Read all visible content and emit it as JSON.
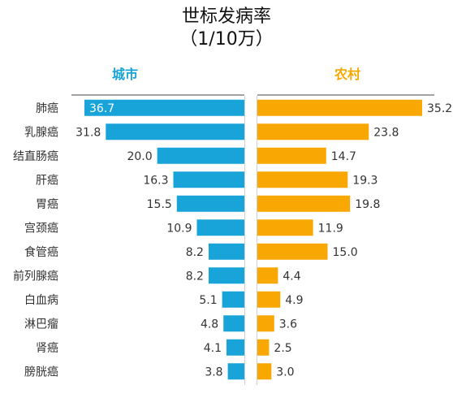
{
  "title_line1": "世标发病率",
  "title_line2": "（1/10万）",
  "city_label": "城市",
  "rural_label": "农村",
  "colors": {
    "city": "#18a4d9",
    "rural": "#f8a703"
  },
  "chart_data": {
    "type": "bar",
    "title": "世标发病率（1/10万）",
    "categories": [
      "肺癌",
      "乳腺癌",
      "结直肠癌",
      "肝癌",
      "胃癌",
      "宫颈癌",
      "食管癌",
      "前列腺癌",
      "白血病",
      "淋巴瘤",
      "肾癌",
      "膀胱癌"
    ],
    "series": [
      {
        "name": "城市",
        "values": [
          36.7,
          31.8,
          20.0,
          16.3,
          15.5,
          10.9,
          8.2,
          8.2,
          5.1,
          4.8,
          4.1,
          3.8
        ]
      },
      {
        "name": "农村",
        "values": [
          35.2,
          23.8,
          14.7,
          19.3,
          19.8,
          11.9,
          15.0,
          4.4,
          4.9,
          3.6,
          2.5,
          3.0
        ]
      }
    ],
    "value_labels": {
      "city": [
        "36.7",
        "31.8",
        "20.0",
        "16.3",
        "15.5",
        "10.9",
        "8.2",
        "8.2",
        "5.1",
        "4.8",
        "4.1",
        "3.8"
      ],
      "rural": [
        "35.2",
        "23.8",
        "14.7",
        "19.3",
        "19.8",
        "11.9",
        "15.0",
        "4.4",
        "4.9",
        "3.6",
        "2.5",
        "3.0"
      ]
    }
  }
}
